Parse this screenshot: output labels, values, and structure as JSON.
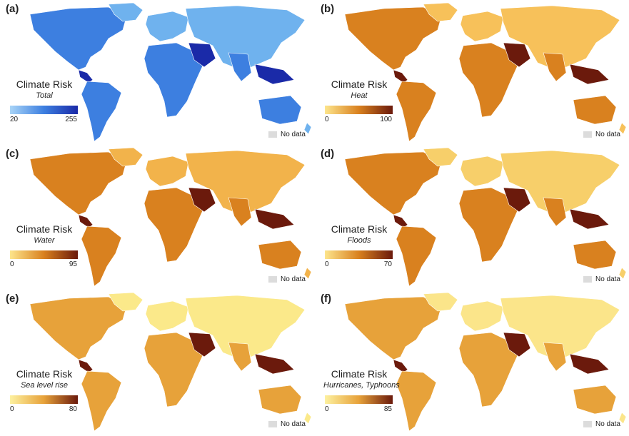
{
  "panels": [
    {
      "letter": "(a)",
      "legend_title": "Climate Risk",
      "legend_subtitle": "Total",
      "min": "20",
      "max": "255",
      "colors": {
        "low": "#a8d4f7",
        "mid": "#3d7fe0",
        "high": "#1a2aa8",
        "light": "#6fb2ee"
      },
      "nodata": "No data"
    },
    {
      "letter": "(b)",
      "legend_title": "Climate Risk",
      "legend_subtitle": "Heat",
      "min": "0",
      "max": "100",
      "colors": {
        "low": "#fde58c",
        "mid": "#d9811f",
        "high": "#6b1a0c",
        "light": "#f7c15a"
      },
      "nodata": "No data"
    },
    {
      "letter": "(c)",
      "legend_title": "Climate Risk",
      "legend_subtitle": "Water",
      "min": "0",
      "max": "95",
      "colors": {
        "low": "#fde58c",
        "mid": "#d9811f",
        "high": "#6b1a0c",
        "light": "#f2b34b"
      },
      "nodata": "No data"
    },
    {
      "letter": "(d)",
      "legend_title": "Climate Risk",
      "legend_subtitle": "Floods",
      "min": "0",
      "max": "70",
      "colors": {
        "low": "#fde58c",
        "mid": "#d9811f",
        "high": "#6b1a0c",
        "light": "#f7cf6a"
      },
      "nodata": "No data"
    },
    {
      "letter": "(e)",
      "legend_title": "Climate Risk",
      "legend_subtitle": "Sea level rise",
      "min": "0",
      "max": "80",
      "colors": {
        "low": "#fdf1a0",
        "mid": "#e7a23a",
        "high": "#6b1a0c",
        "light": "#fbe98a"
      },
      "nodata": "No data"
    },
    {
      "letter": "(f)",
      "legend_title": "Climate Risk",
      "legend_subtitle": "Hurricanes, Typhoons",
      "min": "0",
      "max": "85",
      "colors": {
        "low": "#fdf1a0",
        "mid": "#e7a23a",
        "high": "#6b1a0c",
        "light": "#fbe58a"
      },
      "nodata": "No data"
    }
  ]
}
